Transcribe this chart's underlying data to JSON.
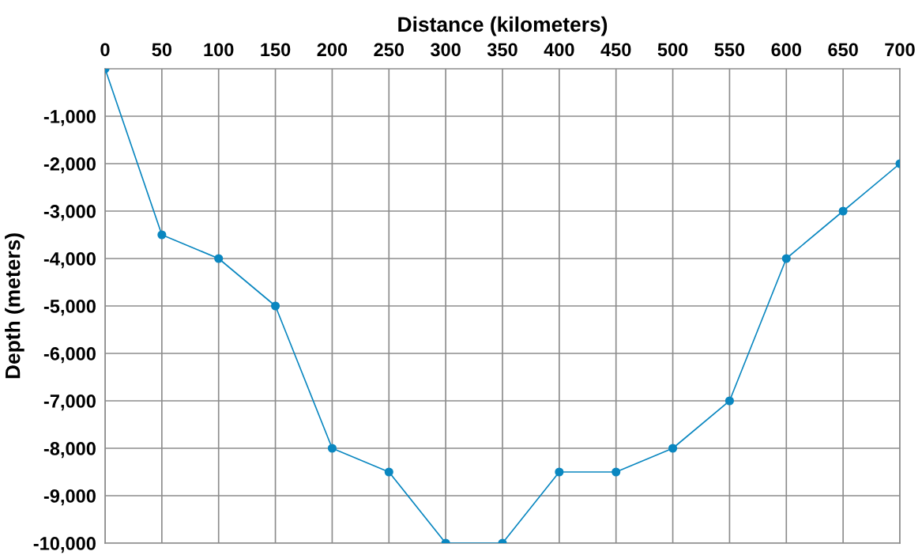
{
  "chart_data": {
    "type": "line",
    "xlabel": "Distance (kilometers)",
    "ylabel": "Depth (meters)",
    "x": [
      0,
      50,
      100,
      150,
      200,
      250,
      300,
      350,
      400,
      450,
      500,
      550,
      600,
      650,
      700
    ],
    "series": [
      {
        "color": "#0a87c0",
        "values": [
          0,
          -3500,
          -4000,
          -5000,
          -8000,
          -8500,
          -10000,
          -10000,
          -8500,
          -8500,
          -8000,
          -7000,
          -4000,
          -3000,
          -2000
        ]
      }
    ],
    "xlim": [
      0,
      700
    ],
    "xticks": [
      0,
      50,
      100,
      150,
      200,
      250,
      300,
      350,
      400,
      450,
      500,
      550,
      600,
      650,
      700
    ],
    "ylim": [
      -10000,
      0
    ],
    "yticks": [
      {
        "value": -10000,
        "label": "-10,000"
      },
      {
        "value": -9000,
        "label": "-9,000"
      },
      {
        "value": -8000,
        "label": "-8,000"
      },
      {
        "value": -7000,
        "label": "-7,000"
      },
      {
        "value": -6000,
        "label": "-6,000"
      },
      {
        "value": -5000,
        "label": "-5,000"
      },
      {
        "value": -4000,
        "label": "-4,000"
      },
      {
        "value": -3000,
        "label": "-3,000"
      },
      {
        "value": -2000,
        "label": "-2,000"
      },
      {
        "value": -1000,
        "label": "-1,000"
      }
    ],
    "grid": true,
    "marker": "circle",
    "line_style": "solid",
    "legend": false
  }
}
